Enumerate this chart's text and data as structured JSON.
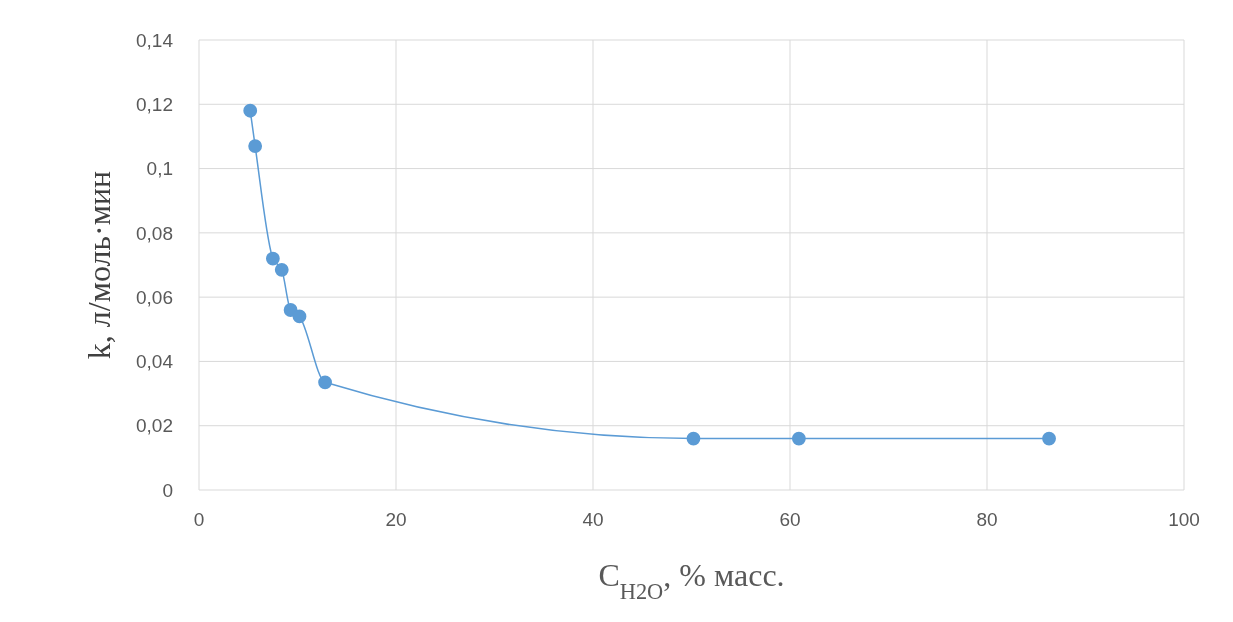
{
  "chart_data": {
    "type": "line",
    "xlabel": "C$_{H2O}$, % масс.",
    "ylabel": "k, л/моль·мин",
    "x": [
      5.2,
      5.7,
      7.5,
      8.4,
      9.3,
      10.2,
      12.8,
      50.2,
      60.9,
      86.3
    ],
    "series": [
      {
        "color": "#5b9bd5",
        "values": [
          0.118,
          0.107,
          0.072,
          0.0685,
          0.056,
          0.054,
          0.0335,
          0.016,
          0.016,
          0.016
        ]
      }
    ],
    "xlim": [
      0,
      100
    ],
    "xticks": [
      0,
      20,
      40,
      60,
      80,
      100
    ],
    "ylim": [
      0,
      0.14
    ],
    "yticks": [
      {
        "value": 0,
        "label": "0"
      },
      {
        "value": 0.02,
        "label": "0,02"
      },
      {
        "value": 0.04,
        "label": "0,04"
      },
      {
        "value": 0.06,
        "label": "0,06"
      },
      {
        "value": 0.08,
        "label": "0,08"
      },
      {
        "value": 0.1,
        "label": "0,1"
      },
      {
        "value": 0.12,
        "label": "0,12"
      },
      {
        "value": 0.14,
        "label": "0,14"
      }
    ],
    "grid": true,
    "marker": "circle",
    "line_style": "solid"
  }
}
